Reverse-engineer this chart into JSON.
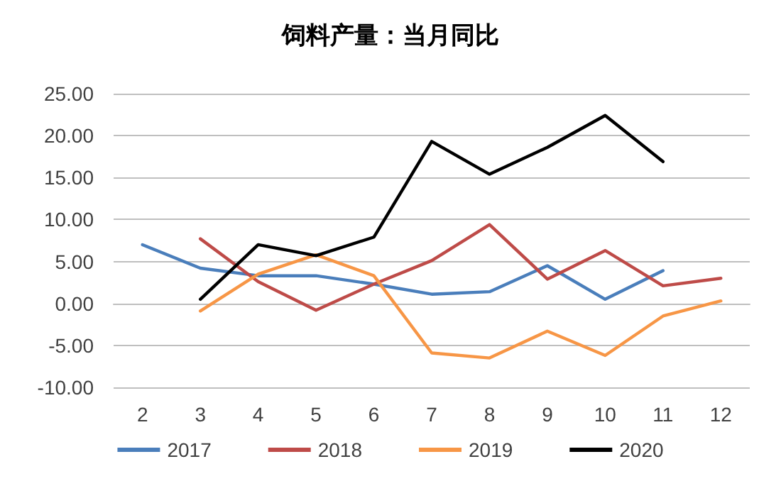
{
  "chart_data": {
    "type": "line",
    "title": "饲料产量：当月同比",
    "categories": [
      "2",
      "3",
      "4",
      "5",
      "6",
      "7",
      "8",
      "9",
      "10",
      "11",
      "12"
    ],
    "series": [
      {
        "name": "2017",
        "color": "#4a7ebb",
        "values": [
          7.0,
          4.2,
          3.3,
          3.3,
          2.3,
          1.1,
          1.4,
          4.5,
          0.5,
          3.9,
          null
        ]
      },
      {
        "name": "2018",
        "color": "#be4b48",
        "values": [
          null,
          7.7,
          2.6,
          -0.8,
          2.3,
          5.1,
          9.4,
          2.9,
          6.3,
          2.1,
          3.0
        ]
      },
      {
        "name": "2019",
        "color": "#f79646",
        "values": [
          null,
          -0.9,
          3.5,
          5.8,
          3.3,
          -5.9,
          -6.5,
          -3.3,
          -6.2,
          -1.5,
          0.3
        ]
      },
      {
        "name": "2020",
        "color": "#000000",
        "values": [
          null,
          0.5,
          7.0,
          5.7,
          7.9,
          19.3,
          15.4,
          18.6,
          22.4,
          16.9,
          null
        ]
      }
    ],
    "ylim": [
      -10,
      25
    ],
    "yticks": [
      {
        "value": -10,
        "label": "-10.00"
      },
      {
        "value": -5,
        "label": "-5.00"
      },
      {
        "value": 0,
        "label": "0.00"
      },
      {
        "value": 5,
        "label": "5.00"
      },
      {
        "value": 10,
        "label": "10.00"
      },
      {
        "value": 15,
        "label": "15.00"
      },
      {
        "value": 20,
        "label": "20.00"
      },
      {
        "value": 25,
        "label": "25.00"
      }
    ],
    "grid": "y",
    "legend": "bottom",
    "marker": "none",
    "line_style": "solid"
  }
}
